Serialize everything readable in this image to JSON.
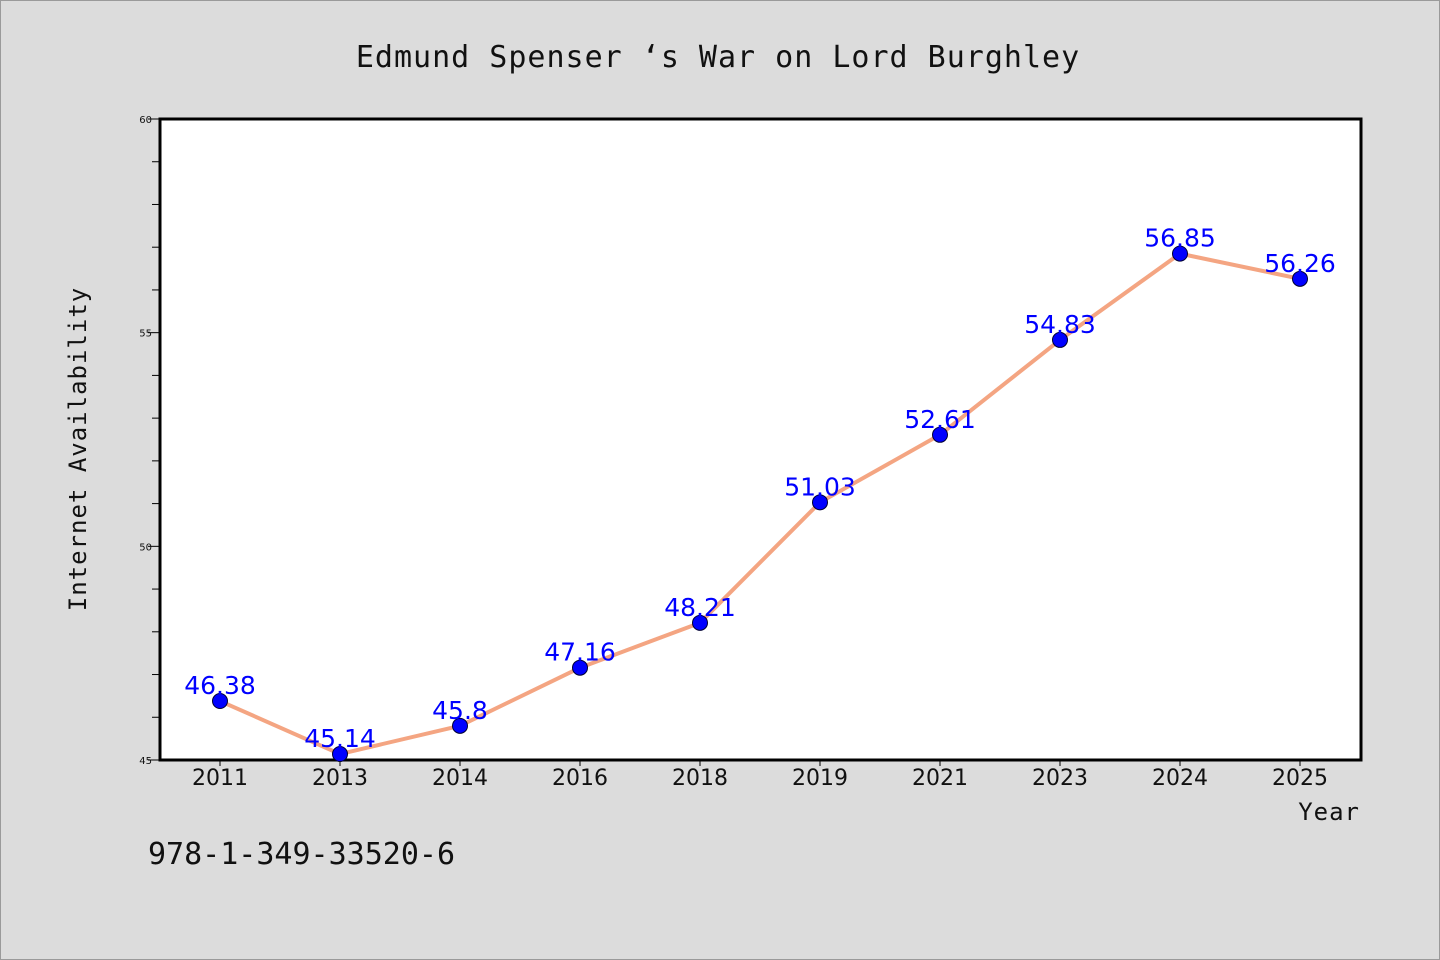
{
  "chart_data": {
    "type": "line",
    "title": "Edmund Spenser ‘s War on Lord Burghley",
    "xlabel": "Year",
    "ylabel": "Internet Availability",
    "categories": [
      "2011",
      "2013",
      "2014",
      "2016",
      "2018",
      "2019",
      "2021",
      "2023",
      "2024",
      "2025"
    ],
    "series": [
      {
        "values": [
          46.38,
          45.14,
          45.8,
          47.16,
          48.21,
          51.03,
          52.61,
          54.83,
          56.85,
          56.26
        ],
        "labels": [
          "46.38",
          "45.14",
          "45.8",
          "47.16",
          "48.21",
          "51.03",
          "52.61",
          "54.83",
          "56.85",
          "56.26"
        ],
        "line_color": "#f4a582",
        "marker_color": "#0000ff",
        "label_color": "#0000ff"
      }
    ],
    "ylim": [
      45,
      60
    ],
    "yticks": [
      "45",
      "50",
      "55",
      "60"
    ],
    "grid": false,
    "background": "#dcdcdc",
    "plot_background": "#ffffff"
  },
  "footnote": "978-1-349-33520-6"
}
